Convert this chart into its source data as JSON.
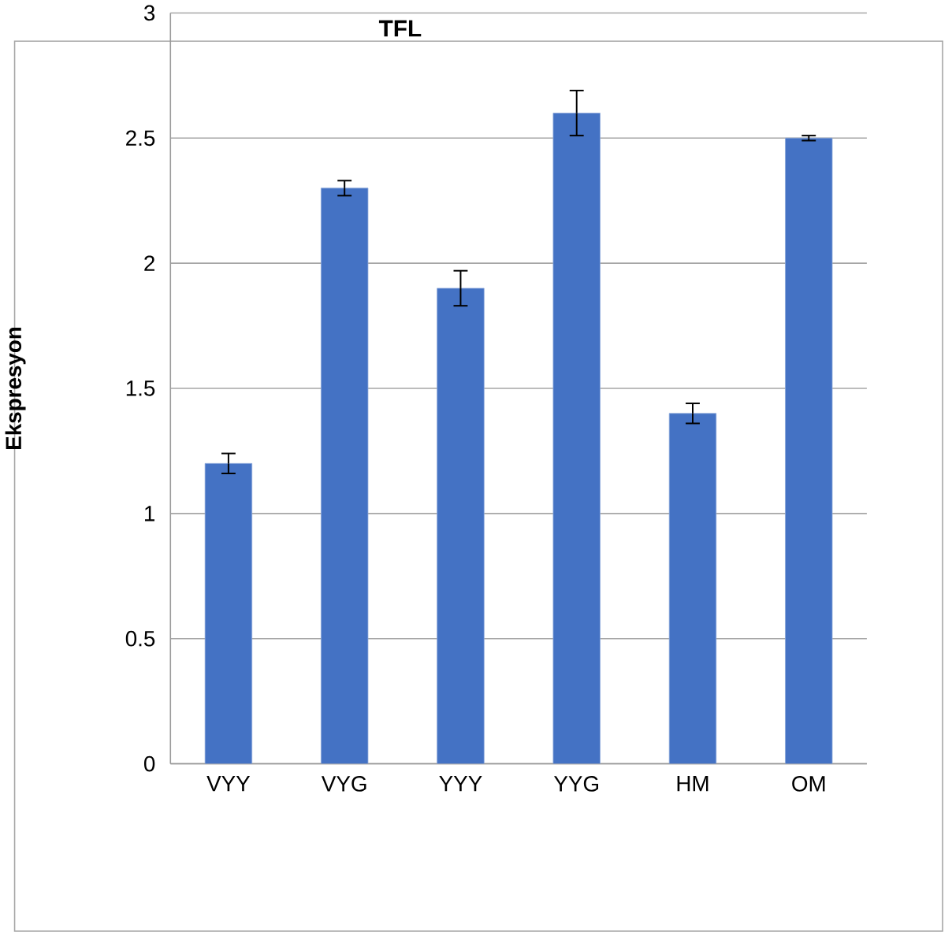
{
  "chart_data": {
    "type": "bar",
    "title": "TFL",
    "ylabel": "Ekspresyon",
    "categories": [
      "VYY",
      "VYG",
      "YYY",
      "YYG",
      "HM",
      "OM"
    ],
    "values": [
      1.2,
      2.3,
      1.9,
      2.6,
      1.4,
      2.5
    ],
    "errors": [
      0.04,
      0.03,
      0.07,
      0.09,
      0.04,
      0.01
    ],
    "color": "#4472c4",
    "ylim": [
      0,
      3
    ],
    "yticks": [
      0,
      0.5,
      1,
      1.5,
      2,
      2.5,
      3
    ],
    "grid": "y"
  }
}
